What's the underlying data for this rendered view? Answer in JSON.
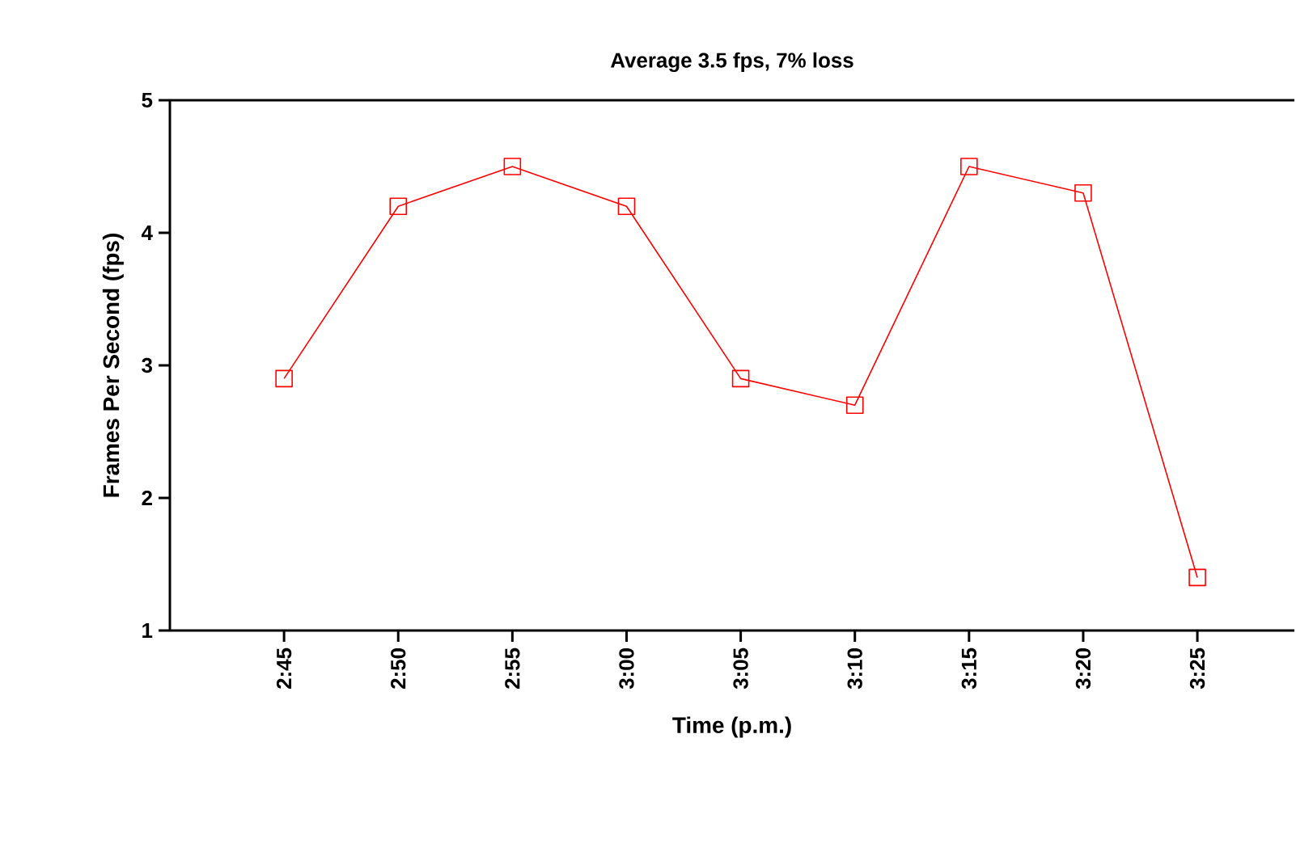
{
  "chart_data": {
    "type": "line",
    "title": "Average 3.5 fps, 7% loss",
    "xlabel": "Time (p.m.)",
    "ylabel": "Frames Per Second (fps)",
    "categories": [
      null,
      "2:45",
      "2:50",
      "2:55",
      "3:00",
      "3:05",
      "3:10",
      "3:15",
      "3:20",
      "3:25"
    ],
    "series": [
      {
        "color": "#ff0000",
        "values": [
          null,
          2.9,
          4.2,
          4.5,
          4.2,
          2.9,
          2.7,
          4.5,
          4.3,
          1.4
        ]
      }
    ],
    "ylim": [
      1,
      5
    ],
    "yticks": [
      1,
      2,
      3,
      4,
      5
    ],
    "marker": "square",
    "line_style": "solid",
    "grid": false
  }
}
